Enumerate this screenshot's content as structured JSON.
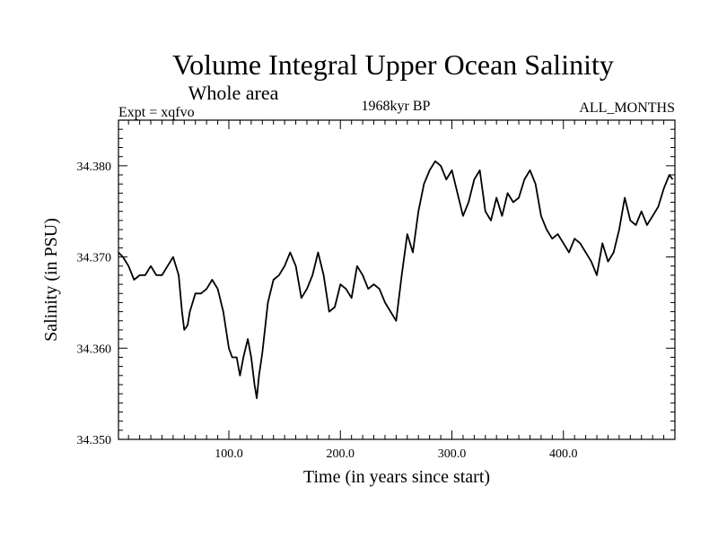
{
  "chart_data": {
    "type": "line",
    "title": "Volume Integral Upper Ocean Salinity",
    "subtitle": "Whole area",
    "expt_label": "Expt = xqfvo",
    "period_label": "1968kyr BP",
    "months_label": "ALL_MONTHS",
    "xlabel": "Time (in years since start)",
    "ylabel": "Salinity (in PSU)",
    "xlim": [
      1,
      500
    ],
    "ylim": [
      34.35,
      34.385
    ],
    "xticks": [
      {
        "value": 100,
        "label": "100.0"
      },
      {
        "value": 200,
        "label": "200.0"
      },
      {
        "value": 300,
        "label": "300.0"
      },
      {
        "value": 400,
        "label": "400.0"
      }
    ],
    "yticks": [
      {
        "value": 34.35,
        "label": "34.350"
      },
      {
        "value": 34.36,
        "label": "34.360"
      },
      {
        "value": 34.37,
        "label": "34.370"
      },
      {
        "value": 34.38,
        "label": "34.380"
      }
    ],
    "series": [
      {
        "name": "Salinity",
        "x": [
          1,
          5,
          10,
          15,
          20,
          25,
          30,
          35,
          40,
          45,
          50,
          55,
          58,
          60,
          63,
          65,
          70,
          75,
          80,
          85,
          90,
          95,
          100,
          103,
          107,
          110,
          113,
          117,
          120,
          123,
          125,
          127,
          130,
          135,
          140,
          145,
          150,
          155,
          160,
          165,
          170,
          175,
          180,
          185,
          190,
          195,
          200,
          205,
          210,
          215,
          220,
          225,
          230,
          235,
          240,
          245,
          250,
          255,
          260,
          265,
          270,
          275,
          280,
          285,
          290,
          295,
          300,
          305,
          310,
          315,
          320,
          325,
          330,
          335,
          340,
          345,
          350,
          355,
          360,
          365,
          370,
          375,
          380,
          385,
          390,
          395,
          400,
          405,
          410,
          415,
          420,
          425,
          430,
          435,
          440,
          445,
          450,
          455,
          460,
          465,
          470,
          475,
          480,
          485,
          490,
          495,
          498
        ],
        "values": [
          34.3705,
          34.37,
          34.369,
          34.3675,
          34.368,
          34.368,
          34.369,
          34.368,
          34.368,
          34.369,
          34.37,
          34.368,
          34.364,
          34.362,
          34.3625,
          34.364,
          34.366,
          34.366,
          34.3665,
          34.3675,
          34.3665,
          34.364,
          34.36,
          34.359,
          34.359,
          34.357,
          34.359,
          34.361,
          34.359,
          34.356,
          34.3545,
          34.357,
          34.3595,
          34.365,
          34.3675,
          34.368,
          34.369,
          34.3705,
          34.369,
          34.3655,
          34.3665,
          34.368,
          34.3705,
          34.368,
          34.364,
          34.3645,
          34.367,
          34.3665,
          34.3655,
          34.369,
          34.368,
          34.3665,
          34.367,
          34.3665,
          34.365,
          34.364,
          34.363,
          34.368,
          34.3725,
          34.3705,
          34.375,
          34.378,
          34.3795,
          34.3805,
          34.38,
          34.3785,
          34.3795,
          34.377,
          34.3745,
          34.376,
          34.3785,
          34.3795,
          34.375,
          34.374,
          34.3765,
          34.3745,
          34.377,
          34.376,
          34.3765,
          34.3785,
          34.3795,
          34.378,
          34.3745,
          34.373,
          34.372,
          34.3725,
          34.3715,
          34.3705,
          34.372,
          34.3715,
          34.3705,
          34.3695,
          34.368,
          34.3715,
          34.3695,
          34.3705,
          34.373,
          34.3765,
          34.374,
          34.3735,
          34.375,
          34.3735,
          34.3745,
          34.3755,
          34.3775,
          34.379,
          34.3785
        ]
      }
    ]
  }
}
